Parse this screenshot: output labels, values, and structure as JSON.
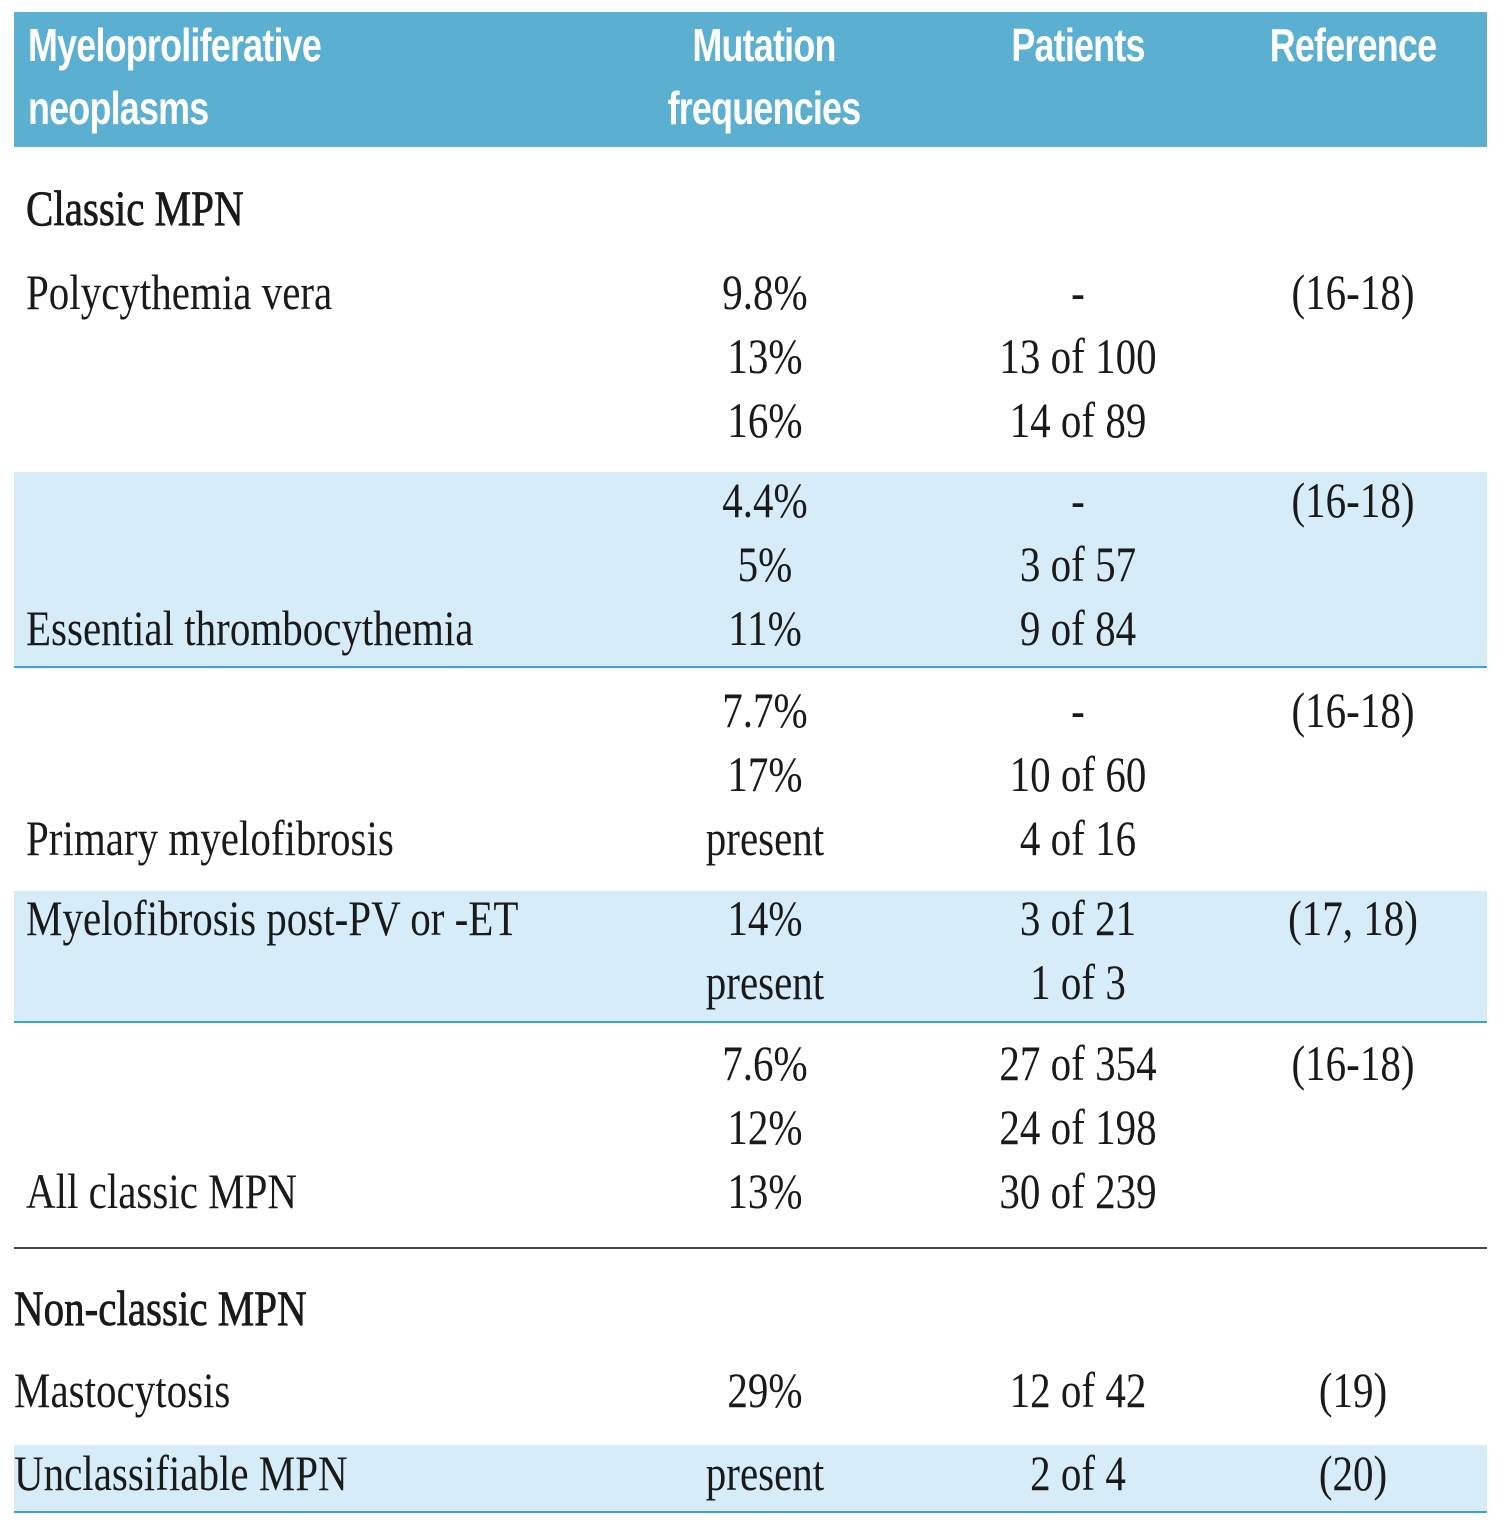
{
  "header": {
    "col_name": [
      "Myeloproliferative",
      "neoplasms"
    ],
    "col_frequency": [
      "Mutation",
      "frequencies"
    ],
    "col_patients": [
      "Patients"
    ],
    "col_reference": [
      "Reference"
    ]
  },
  "colors": {
    "header_bg": "#5BAFD1",
    "band_bg": "#D6EDF9",
    "rule": "#3FA3CF"
  },
  "sections": [
    {
      "title": "Classic MPN",
      "groups": [
        {
          "lines": [
            {
              "name": "Polycythemia vera",
              "frequency": "9.8%",
              "patients": "-",
              "reference": "(16-18)"
            },
            {
              "name": "",
              "frequency": "13%",
              "patients": "13 of 100",
              "reference": ""
            },
            {
              "name": "",
              "frequency": "16%",
              "patients": "14 of 89",
              "reference": ""
            }
          ]
        },
        {
          "lines": [
            {
              "name": "",
              "frequency": "4.4%",
              "patients": "-",
              "reference": "(16-18)"
            },
            {
              "name": "",
              "frequency": "5%",
              "patients": "3 of 57",
              "reference": ""
            },
            {
              "name": "Essential thrombocythemia",
              "frequency": "11%",
              "patients": "9 of 84",
              "reference": ""
            }
          ]
        },
        {
          "lines": [
            {
              "name": "",
              "frequency": "7.7%",
              "patients": "-",
              "reference": "(16-18)"
            },
            {
              "name": "",
              "frequency": "17%",
              "patients": "10 of 60",
              "reference": ""
            },
            {
              "name": "Primary myelofibrosis",
              "frequency": "present",
              "patients": "4 of 16",
              "reference": ""
            }
          ]
        },
        {
          "lines": [
            {
              "name": "Myelofibrosis post-PV or -ET",
              "frequency": "14%",
              "patients": "3 of 21",
              "reference": "(17, 18)"
            },
            {
              "name": "",
              "frequency": "present",
              "patients": "1 of 3",
              "reference": ""
            }
          ]
        },
        {
          "lines": [
            {
              "name": "",
              "frequency": "7.6%",
              "patients": "27 of 354",
              "reference": "(16-18)"
            },
            {
              "name": "",
              "frequency": "12%",
              "patients": "24 of 198",
              "reference": ""
            },
            {
              "name": "All classic MPN",
              "frequency": "13%",
              "patients": "30 of 239",
              "reference": ""
            }
          ]
        }
      ]
    },
    {
      "title": "Non-classic MPN",
      "groups": [
        {
          "lines": [
            {
              "name": "Mastocytosis",
              "frequency": "29%",
              "patients": "12 of 42",
              "reference": "(19)"
            }
          ]
        },
        {
          "lines": [
            {
              "name": "Unclassifiable MPN",
              "frequency": "present",
              "patients": "2 of 4",
              "reference": "(20)"
            }
          ]
        }
      ]
    }
  ]
}
